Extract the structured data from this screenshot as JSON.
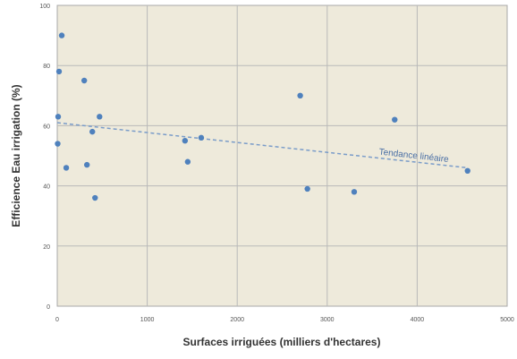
{
  "chart_data": {
    "type": "scatter",
    "xlabel": "Surfaces irriguées (milliers d'hectares)",
    "ylabel": "Efficience Eau irrigation (%)",
    "xlim": [
      0,
      5000
    ],
    "ylim": [
      0,
      100
    ],
    "xticks": [
      "0",
      "1000",
      "2000",
      "3000",
      "4000",
      "5000"
    ],
    "yticks": [
      "0",
      "20",
      "40",
      "60",
      "80",
      "100"
    ],
    "grid": true,
    "colors": {
      "plot_bg": "#eeeadb",
      "grid": "#b9b9b9",
      "point": "#4f81bd",
      "trend": "#7a9cc9",
      "annotation": "#4a6fa5"
    },
    "series": [
      {
        "points": [
          [
            50,
            90
          ],
          [
            20,
            78
          ],
          [
            10,
            63
          ],
          [
            5,
            54
          ],
          [
            100,
            46
          ],
          [
            300,
            75
          ],
          [
            330,
            47
          ],
          [
            390,
            58
          ],
          [
            420,
            36
          ],
          [
            470,
            63
          ],
          [
            1420,
            55
          ],
          [
            1450,
            48
          ],
          [
            1600,
            56
          ],
          [
            2700,
            70
          ],
          [
            2780,
            39
          ],
          [
            3300,
            38
          ],
          [
            3750,
            62
          ],
          [
            4560,
            45
          ]
        ]
      }
    ],
    "trendline": {
      "label": "Tendance linéaire",
      "x": [
        0,
        4560
      ],
      "y": [
        61,
        46
      ]
    }
  }
}
